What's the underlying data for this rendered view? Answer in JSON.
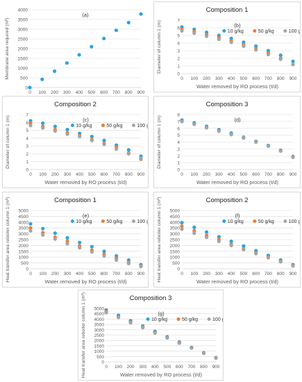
{
  "colors": {
    "s1": "#2ea3e0",
    "s2": "#ed7d31",
    "s3": "#a5a5a5",
    "axis": "#595959",
    "grid": "#d9d9d9"
  },
  "chart_data": [
    {
      "type": "scatter",
      "panel_label": "(a)",
      "title": "",
      "xlabel": "Water removed by RO process (t/d)",
      "ylabel": "Membrane area required (m²)",
      "xlim": [
        0,
        900
      ],
      "ylim": [
        0,
        4000
      ],
      "xticks": [
        0,
        100,
        200,
        300,
        400,
        500,
        600,
        700,
        800,
        900
      ],
      "yticks": [
        0,
        500,
        1000,
        1500,
        2000,
        2500,
        3000,
        3500,
        4000
      ],
      "grid": "horizontal",
      "legend": "none",
      "x": [
        0,
        100,
        200,
        300,
        400,
        500,
        600,
        700,
        800,
        900
      ],
      "series": [
        {
          "values": [
            0,
            420,
            840,
            1260,
            1680,
            2100,
            2520,
            2940,
            3340,
            3780
          ]
        }
      ]
    },
    {
      "type": "scatter",
      "panel_label": "(b)",
      "title": "Composition 1",
      "xlabel": "Water removed by RO process (t/d)",
      "ylabel": "Diameter of column 1 (m)",
      "xlim": [
        0,
        900
      ],
      "ylim": [
        0,
        7
      ],
      "xticks": [
        0,
        100,
        200,
        300,
        400,
        500,
        600,
        700,
        800,
        900
      ],
      "yticks": [
        0,
        1,
        2,
        3,
        4,
        5,
        6,
        7
      ],
      "grid": "horizontal",
      "legend": "top-right",
      "x": [
        0,
        100,
        200,
        300,
        400,
        500,
        600,
        700,
        800,
        900
      ],
      "series": [
        {
          "name": "10 g/kg",
          "values": [
            6.1,
            5.8,
            5.4,
            5.0,
            4.6,
            4.1,
            3.6,
            3.0,
            2.4,
            1.6
          ]
        },
        {
          "name": "50 g/kg",
          "values": [
            5.8,
            5.5,
            5.1,
            4.7,
            4.3,
            3.8,
            3.3,
            2.7,
            2.0,
            1.2
          ]
        },
        {
          "name": "100 g/kg",
          "values": [
            5.6,
            5.3,
            4.9,
            4.5,
            4.1,
            3.6,
            3.1,
            2.5,
            1.9,
            1.2
          ]
        }
      ]
    },
    {
      "type": "scatter",
      "panel_label": "(c)",
      "title": "Composition 2",
      "xlabel": "Water removed by RO process (t/d)",
      "ylabel": "Diameter of column 1 (m)",
      "xlim": [
        0,
        900
      ],
      "ylim": [
        0,
        7
      ],
      "xticks": [
        0,
        100,
        200,
        300,
        400,
        500,
        600,
        700,
        800,
        900
      ],
      "yticks": [
        0,
        1,
        2,
        3,
        4,
        5,
        6,
        7
      ],
      "grid": "horizontal",
      "legend": "top-right",
      "x": [
        0,
        100,
        200,
        300,
        400,
        500,
        600,
        700,
        800,
        900
      ],
      "series": [
        {
          "name": "10 g/kg",
          "values": [
            6.2,
            5.9,
            5.5,
            5.1,
            4.6,
            4.2,
            3.7,
            3.1,
            2.5,
            1.7
          ]
        },
        {
          "name": "50 g/kg",
          "values": [
            5.9,
            5.5,
            5.1,
            4.7,
            4.3,
            3.8,
            3.3,
            2.8,
            2.1,
            1.3
          ]
        },
        {
          "name": "100 g/kg",
          "values": [
            5.6,
            5.3,
            4.9,
            4.5,
            4.2,
            3.7,
            3.2,
            2.6,
            2.0,
            1.4
          ]
        }
      ]
    },
    {
      "type": "scatter",
      "panel_label": "(d)",
      "title": "Composition 3",
      "xlabel": "Water removed by RO process (t/d)",
      "ylabel": "Diameter of column 1 (m)",
      "xlim": [
        0,
        900
      ],
      "ylim": [
        0,
        8
      ],
      "xticks": [
        0,
        100,
        200,
        300,
        400,
        500,
        600,
        700,
        800,
        900
      ],
      "yticks": [
        0,
        1,
        2,
        3,
        4,
        5,
        6,
        7,
        8
      ],
      "grid": "horizontal",
      "legend": "none",
      "x": [
        0,
        100,
        200,
        300,
        400,
        500,
        600,
        700,
        800,
        900
      ],
      "series": [
        {
          "values": [
            7.2,
            6.8,
            6.3,
            5.8,
            5.3,
            4.7,
            4.1,
            3.5,
            2.8,
            1.9
          ]
        },
        {
          "values": [
            7.0,
            6.6,
            6.1,
            5.6,
            5.1,
            4.6,
            4.0,
            3.4,
            2.7,
            1.8
          ]
        },
        {
          "values": [
            7.0,
            6.6,
            6.1,
            5.6,
            5.1,
            4.6,
            4.0,
            3.4,
            2.7,
            1.8
          ]
        }
      ]
    },
    {
      "type": "scatter",
      "panel_label": "(e)",
      "title": "Composition 1",
      "xlabel": "Water removed by RO process (t/d)",
      "ylabel": "Heat transfer area reboiler column 1 (m²)",
      "xlim": [
        0,
        900
      ],
      "ylim": [
        0,
        5000
      ],
      "xticks": [
        0,
        100,
        200,
        300,
        400,
        500,
        600,
        700,
        800,
        900
      ],
      "yticks": [
        0,
        500,
        1000,
        1500,
        2000,
        2500,
        3000,
        3500,
        4000,
        4500,
        5000
      ],
      "grid": "horizontal",
      "legend": "top-right",
      "x": [
        0,
        100,
        200,
        300,
        400,
        500,
        600,
        700,
        800,
        900
      ],
      "series": [
        {
          "name": "10 g/kg",
          "values": [
            3850,
            3450,
            3050,
            2650,
            2250,
            1900,
            1500,
            1100,
            750,
            350
          ]
        },
        {
          "name": "50 g/kg",
          "values": [
            3500,
            3100,
            2700,
            2350,
            1950,
            1600,
            1250,
            900,
            550,
            250
          ]
        },
        {
          "name": "100 g/kg",
          "values": [
            3250,
            2900,
            2550,
            2150,
            1800,
            1450,
            1100,
            750,
            450,
            200
          ]
        }
      ]
    },
    {
      "type": "scatter",
      "panel_label": "(f)",
      "title": "Composition 2",
      "xlabel": "Water removed by RO process (t/d)",
      "ylabel": "Heat transfer area reboiler column 1 (m²)",
      "xlim": [
        0,
        900
      ],
      "ylim": [
        0,
        5000
      ],
      "xticks": [
        0,
        100,
        200,
        300,
        400,
        500,
        600,
        700,
        800,
        900
      ],
      "yticks": [
        0,
        500,
        1000,
        1500,
        2000,
        2500,
        3000,
        3500,
        4000,
        4500,
        5000
      ],
      "grid": "horizontal",
      "legend": "top-right",
      "x": [
        0,
        100,
        200,
        300,
        400,
        500,
        600,
        700,
        800,
        900
      ],
      "series": [
        {
          "name": "10 g/kg",
          "values": [
            3950,
            3550,
            3150,
            2750,
            2350,
            1950,
            1550,
            1150,
            750,
            350
          ]
        },
        {
          "name": "50 g/kg",
          "values": [
            3650,
            3250,
            2850,
            2500,
            2100,
            1700,
            1350,
            1000,
            650,
            300
          ]
        },
        {
          "name": "100 g/kg",
          "values": [
            3400,
            3050,
            2700,
            2350,
            2000,
            1650,
            1300,
            950,
            600,
            250
          ]
        }
      ]
    },
    {
      "type": "scatter",
      "panel_label": "(g)",
      "title": "Composition 3",
      "xlabel": "Water removed by RO process (t/d)",
      "ylabel": "Heat transfer area reboiler column 1 (m²)",
      "xlim": [
        0,
        900
      ],
      "ylim": [
        0,
        5000
      ],
      "xticks": [
        0,
        100,
        200,
        300,
        400,
        500,
        600,
        700,
        800,
        900
      ],
      "yticks": [
        0,
        500,
        1000,
        1500,
        2000,
        2500,
        3000,
        3500,
        4000,
        4500,
        5000
      ],
      "grid": "horizontal",
      "legend": "top-right",
      "x": [
        0,
        100,
        200,
        300,
        400,
        500,
        600,
        700,
        800,
        900
      ],
      "series": [
        {
          "name": "10 g/kg",
          "values": [
            4850,
            4350,
            3850,
            3350,
            2850,
            2350,
            1850,
            1350,
            850,
            400
          ]
        },
        {
          "name": "50 g/kg",
          "values": [
            4700,
            4200,
            3700,
            3250,
            2750,
            2250,
            1800,
            1300,
            850,
            380
          ]
        },
        {
          "name": "100 g/kg",
          "values": [
            4600,
            4150,
            3650,
            3200,
            2700,
            2250,
            1750,
            1300,
            800,
            350
          ]
        }
      ]
    }
  ]
}
